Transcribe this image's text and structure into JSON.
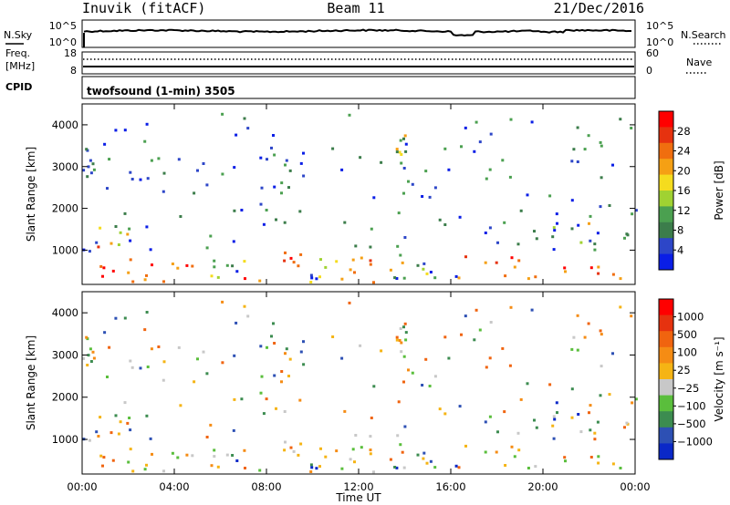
{
  "header": {
    "station": "Inuvik (fitACF)",
    "beam": "Beam 11",
    "date": "21/Dec/2016"
  },
  "top_panels": {
    "nsky_label": "N.Sky",
    "nsearch_label": "N.Search",
    "noise_ticks_left": [
      "10^5",
      "10^0"
    ],
    "noise_ticks_right": [
      "10^5",
      "10^0"
    ],
    "freq_label_line1": "Freq.",
    "freq_label_line2": "[MHz]",
    "freq_ticks": [
      "18",
      "8"
    ],
    "nave_ticks": [
      "60",
      "0"
    ],
    "nave_label": "Nave",
    "cpid_label": "CPID",
    "cpid_text": "twofsound (1-min) 3505"
  },
  "chart_data": [
    {
      "type": "heatmap",
      "panel": "power",
      "xlabel": "",
      "ylabel": "Slant Range [km]",
      "x_ticks": [
        "00:00",
        "04:00",
        "08:00",
        "12:00",
        "16:00",
        "20:00",
        "00:00"
      ],
      "xlim_hours": [
        0,
        24
      ],
      "y_ticks": [
        1000,
        2000,
        3000,
        4000
      ],
      "ylim_km": [
        180,
        4500
      ],
      "colorbar": {
        "label": "Power [dB]",
        "ticks": [
          "28",
          "24",
          "20",
          "16",
          "12",
          "8",
          "4"
        ],
        "colors": [
          "#0a1ee6",
          "#2d46c8",
          "#3c7d4b",
          "#4ba050",
          "#a0d232",
          "#f5dc1e",
          "#f5a014",
          "#f06e0f",
          "#e6320f",
          "#ff0000"
        ]
      }
    },
    {
      "type": "heatmap",
      "panel": "velocity",
      "xlabel": "Time UT",
      "ylabel": "Slant Range [km]",
      "x_ticks": [
        "00:00",
        "04:00",
        "08:00",
        "12:00",
        "16:00",
        "20:00",
        "00:00"
      ],
      "xlim_hours": [
        0,
        24
      ],
      "y_ticks": [
        1000,
        2000,
        3000,
        4000
      ],
      "ylim_km": [
        180,
        4500
      ],
      "colorbar": {
        "label": "Velocity [m s⁻¹]",
        "ticks": [
          "1000",
          "500",
          "100",
          "25",
          "−25",
          "−100",
          "−500",
          "−1000"
        ],
        "colors": [
          "#0a28c8",
          "#2d50b4",
          "#3c8c50",
          "#5abe3c",
          "#c8c8c8",
          "#f5b414",
          "#f58c14",
          "#f0640f",
          "#e6320f",
          "#ff0000"
        ]
      }
    }
  ]
}
